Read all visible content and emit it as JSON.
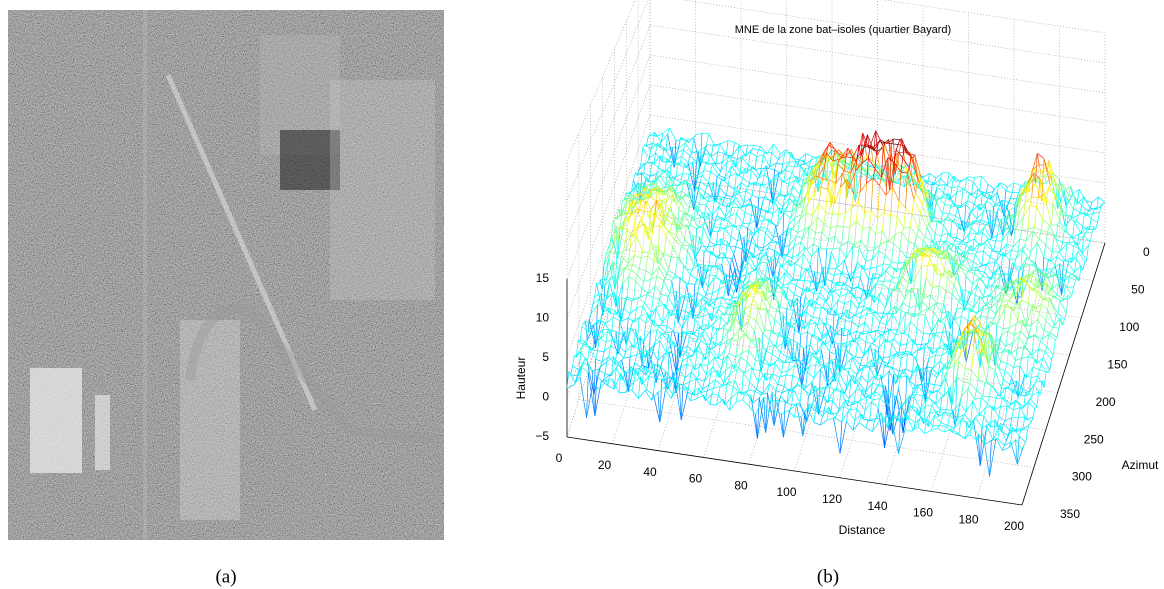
{
  "figure": {
    "panels": [
      {
        "caption": "(a)"
      },
      {
        "caption": "(b)",
        "title": "MNE de la zone bat–isoles (quartier Bayard)",
        "z_label": "Hauteur",
        "x_label": "Distance",
        "y_label": "Azimut",
        "z_ticks": [
          "15",
          "10",
          "5",
          "0",
          "−5"
        ],
        "x_ticks": [
          "0",
          "20",
          "40",
          "60",
          "80",
          "100",
          "120",
          "140",
          "160",
          "180",
          "200"
        ],
        "y_ticks": [
          "0",
          "50",
          "100",
          "150",
          "200",
          "250",
          "300",
          "350"
        ]
      }
    ]
  }
}
